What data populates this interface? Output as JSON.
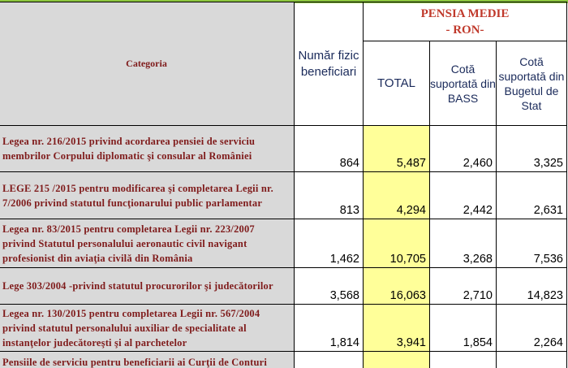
{
  "header": {
    "categoria": "Categoria",
    "numar_fizic": "Număr fizic beneficiari",
    "pensia_line1": "PENSIA MEDIE",
    "pensia_line2": "- RON-",
    "total": "TOTAL",
    "cota_bass": "Cotă suportată din BASS",
    "cota_buget": "Cotă suportată din Bugetul de Stat"
  },
  "rows": [
    {
      "category": "Legea nr. 216/2015 privind acordarea pensiei de serviciu membrilor Corpului diplomatic şi consular al României",
      "numar": "864",
      "total": "5,487",
      "bass": "2,460",
      "buget": "3,325"
    },
    {
      "category": "LEGE 215 /2015  pentru modificarea şi completarea Legii nr. 7/2006 privind statutul funcţionarului public parlamentar",
      "numar": "813",
      "total": "4,294",
      "bass": "2,442",
      "buget": "2,631"
    },
    {
      "category": " Legea nr. 83/2015 pentru completarea Legii nr. 223/2007 privind Statutul personalului aeronautic civil navigant profesionist din aviaţia civilă din România",
      "numar": "1,462",
      "total": "10,705",
      "bass": "3,268",
      "buget": "7,536"
    },
    {
      "category": "Lege 303/2004 -privind statutul procurorilor şi judecătorilor",
      "numar": "3,568",
      "total": "16,063",
      "bass": "2,710",
      "buget": "14,823"
    },
    {
      "category": "Legea nr. 130/2015 pentru completarea Legii nr. 567/2004 privind statutul personalului auxiliar de specialitate al instanţelor judecătoreşti şi al parchetelor",
      "numar": "1,814",
      "total": "3,941",
      "bass": "1,854",
      "buget": "2,264"
    },
    {
      "category": "Pensiile de serviciu pentru beneficiarii ai Curţii de Conturi",
      "numar": "",
      "total": "",
      "bass": "",
      "buget": ""
    }
  ],
  "colors": {
    "category_text": "#7f1b1b",
    "pensia_title": "#c0392b",
    "header_text": "#1a2a5a",
    "category_bg": "#d9d9d9",
    "total_bg": "#ffff99",
    "top_bar": "#8dc63f"
  }
}
